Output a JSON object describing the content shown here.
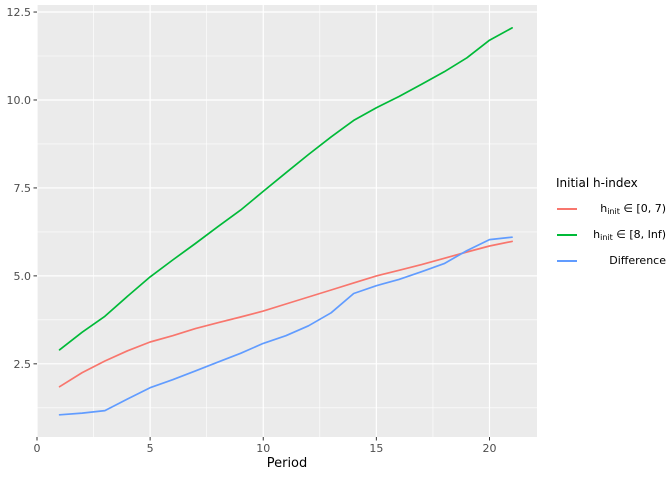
{
  "chart_data": {
    "type": "line",
    "title": "",
    "x": [
      1,
      2,
      3,
      4,
      5,
      6,
      7,
      8,
      9,
      10,
      11,
      12,
      13,
      14,
      15,
      16,
      17,
      18,
      19,
      20,
      21
    ],
    "series": [
      {
        "name": "h_init ∈ [0, 7)",
        "label_parts": {
          "base": "h",
          "sub": "init",
          "rest": " ∈ [0, 7)"
        },
        "color": "#F8766D",
        "values": [
          1.85,
          2.25,
          2.58,
          2.87,
          3.12,
          3.3,
          3.5,
          3.67,
          3.83,
          4.0,
          4.2,
          4.4,
          4.6,
          4.8,
          5.0,
          5.16,
          5.32,
          5.5,
          5.68,
          5.85,
          5.98
        ]
      },
      {
        "name": "h_init ∈ [8, Inf)",
        "label_parts": {
          "base": "h",
          "sub": "init",
          "rest": " ∈ [8, Inf)"
        },
        "color": "#00BA38",
        "values": [
          2.9,
          3.4,
          3.85,
          4.42,
          4.97,
          5.45,
          5.92,
          6.4,
          6.87,
          7.4,
          7.93,
          8.45,
          8.95,
          9.42,
          9.78,
          10.1,
          10.45,
          10.8,
          11.2,
          11.7,
          12.05
        ]
      },
      {
        "name": "Difference",
        "label_parts": {
          "base": "",
          "sub": "",
          "rest": "Difference"
        },
        "color": "#619CFF",
        "values": [
          1.05,
          1.1,
          1.17,
          1.5,
          1.82,
          2.05,
          2.3,
          2.55,
          2.8,
          3.08,
          3.3,
          3.58,
          3.95,
          4.5,
          4.72,
          4.9,
          5.12,
          5.35,
          5.72,
          6.03,
          6.1
        ]
      }
    ],
    "axes": {
      "x": {
        "label": "Period",
        "min": 0,
        "max": 22.1,
        "ticks": [
          0,
          5,
          10,
          15,
          20
        ],
        "tick_labels": [
          "0",
          "5",
          "10",
          "15",
          "20"
        ],
        "minor_ticks": [
          2.5,
          7.5,
          12.5,
          17.5
        ]
      },
      "y": {
        "label": "",
        "min": 0.42,
        "max": 12.7,
        "ticks": [
          2.5,
          5.0,
          7.5,
          10.0,
          12.5
        ],
        "tick_labels": [
          "2.5",
          "5.0",
          "7.5",
          "10.0",
          "12.5"
        ],
        "minor_ticks": [
          1.25,
          3.75,
          6.25,
          8.75,
          11.25
        ]
      }
    },
    "legend": {
      "title": "Initial h-index",
      "position": "right"
    },
    "style": {
      "panel_bg": "#EBEBEB",
      "grid_major": "#FFFFFF",
      "grid_minor": "#FFFFFF",
      "tick_mark_color": "#333333",
      "axis_text_color": "#4D4D4D",
      "legend_key_bg": "#F2F2F2"
    },
    "layout": {
      "grid": true,
      "legend_position": "right"
    }
  }
}
